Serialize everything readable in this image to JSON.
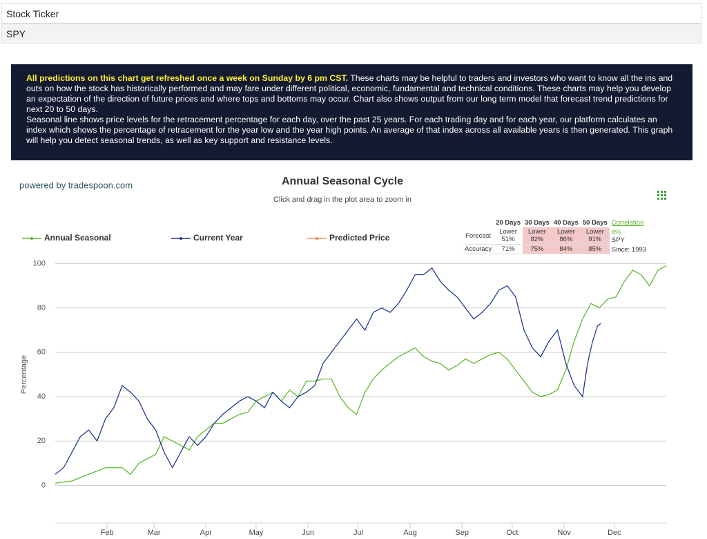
{
  "form": {
    "rows": [
      "Stock Ticker",
      "SPY"
    ]
  },
  "notice": {
    "highlight": "All predictions on this chart get refreshed once a week on Sunday by 6 pm CST.",
    "text": "These charts may be helpful to traders and investors who want to know all the ins and outs on how the stock has historically performed and may fare under different political, economic, fundamental and technical conditions. These charts may help you develop an expectation of the direction of future prices and where tops and bottoms may occur. Chart also shows output from our long term model that forecast trend predictions for next 20 to 50 days.",
    "text2": "Seasonal line shows price levels for the retracement percentage for each day, over the past 25 years. For each trading day and for each year, our platform calculates an index which shows the percentage of retracement for the year low and the year high points. An average of that index across all available years is then generated. This graph will help you detect seasonal trends, as well as key support and resistance levels."
  },
  "powered_by": "powered by tradespoon.com",
  "forecast_table": {
    "headers": [
      "20 Days",
      "30 Days",
      "40 Days",
      "50 Days"
    ],
    "row_labels": [
      "Forecast",
      "Accuracy"
    ],
    "forecast": [
      [
        "Lower",
        "51%"
      ],
      [
        "Lower",
        "82%"
      ],
      [
        "Lower",
        "86%"
      ],
      [
        "Lower",
        "91%"
      ]
    ],
    "accuracy": [
      "71%",
      "75%",
      "84%",
      "85%"
    ],
    "correlation": "Correlation",
    "correlation_value": "8%",
    "symbol": "SPY",
    "since": "Since: 1993"
  },
  "chart_data": {
    "type": "line",
    "title": "Annual Seasonal Cycle",
    "subtitle": "Click and drag in the plot area to zoom in",
    "ylabel": "Percentage",
    "xlim": [
      0,
      365
    ],
    "xticks": [
      {
        "value": 31,
        "label": "Feb"
      },
      {
        "value": 59,
        "label": "Mar"
      },
      {
        "value": 90,
        "label": "Apr"
      },
      {
        "value": 120,
        "label": "May"
      },
      {
        "value": 151,
        "label": "Jun"
      },
      {
        "value": 181,
        "label": "Jul"
      },
      {
        "value": 212,
        "label": "Aug"
      },
      {
        "value": 243,
        "label": "Sep"
      },
      {
        "value": 273,
        "label": "Oct"
      },
      {
        "value": 304,
        "label": "Nov"
      },
      {
        "value": 334,
        "label": "Dec"
      }
    ],
    "ylim": [
      -17,
      102
    ],
    "yticks": [
      0,
      20,
      40,
      60,
      80,
      100
    ],
    "grid": true,
    "series": [
      {
        "name": "Annual Seasonal",
        "color": "#5cb82e",
        "x": [
          0,
          10,
          20,
          30,
          40,
          45,
          50,
          55,
          60,
          65,
          70,
          75,
          80,
          85,
          90,
          95,
          100,
          105,
          110,
          115,
          120,
          125,
          130,
          135,
          140,
          145,
          150,
          155,
          160,
          165,
          170,
          175,
          180,
          185,
          190,
          195,
          200,
          205,
          210,
          215,
          220,
          225,
          230,
          235,
          240,
          245,
          250,
          255,
          260,
          265,
          270,
          275,
          280,
          285,
          290,
          295,
          300,
          305,
          310,
          315,
          320,
          325,
          330,
          335,
          340,
          345,
          350,
          355,
          360,
          365
        ],
        "values": [
          1,
          2,
          5,
          8,
          8,
          5,
          10,
          12,
          14,
          22,
          20,
          18,
          16,
          22,
          25,
          28,
          28,
          30,
          32,
          33,
          38,
          40,
          42,
          38,
          43,
          40,
          47,
          47,
          48,
          48,
          40,
          35,
          32,
          42,
          48,
          52,
          55,
          58,
          60,
          62,
          58,
          56,
          55,
          52,
          54,
          57,
          55,
          57,
          59,
          60,
          57,
          52,
          47,
          42,
          40,
          41,
          43,
          52,
          65,
          75,
          82,
          80,
          84,
          85,
          92,
          97,
          95,
          90,
          97,
          99
        ]
      },
      {
        "name": "Current Year",
        "color": "#1f3a93",
        "x": [
          0,
          5,
          10,
          15,
          20,
          25,
          30,
          35,
          40,
          45,
          50,
          55,
          60,
          65,
          70,
          75,
          80,
          85,
          90,
          95,
          100,
          105,
          110,
          115,
          120,
          125,
          130,
          135,
          140,
          145,
          150,
          155,
          160,
          165,
          170,
          175,
          180,
          185,
          190,
          195,
          200,
          205,
          210,
          215,
          220,
          225,
          230,
          235,
          240,
          245,
          250,
          255,
          260,
          265,
          270,
          275,
          280,
          285,
          290,
          295,
          300,
          305,
          310,
          315,
          318,
          321,
          324,
          326
        ],
        "values": [
          5,
          8,
          15,
          22,
          25,
          20,
          30,
          35,
          45,
          42,
          38,
          30,
          25,
          15,
          8,
          15,
          22,
          18,
          22,
          28,
          32,
          35,
          38,
          40,
          38,
          35,
          42,
          38,
          35,
          40,
          42,
          45,
          55,
          60,
          65,
          70,
          75,
          70,
          78,
          80,
          78,
          82,
          88,
          95,
          95,
          98,
          92,
          88,
          85,
          80,
          75,
          78,
          82,
          88,
          90,
          85,
          70,
          62,
          58,
          65,
          70,
          55,
          45,
          40,
          55,
          65,
          72,
          73
        ]
      },
      {
        "name": "Predicted Price",
        "color": "#f08a5d",
        "x": [],
        "values": []
      }
    ]
  }
}
